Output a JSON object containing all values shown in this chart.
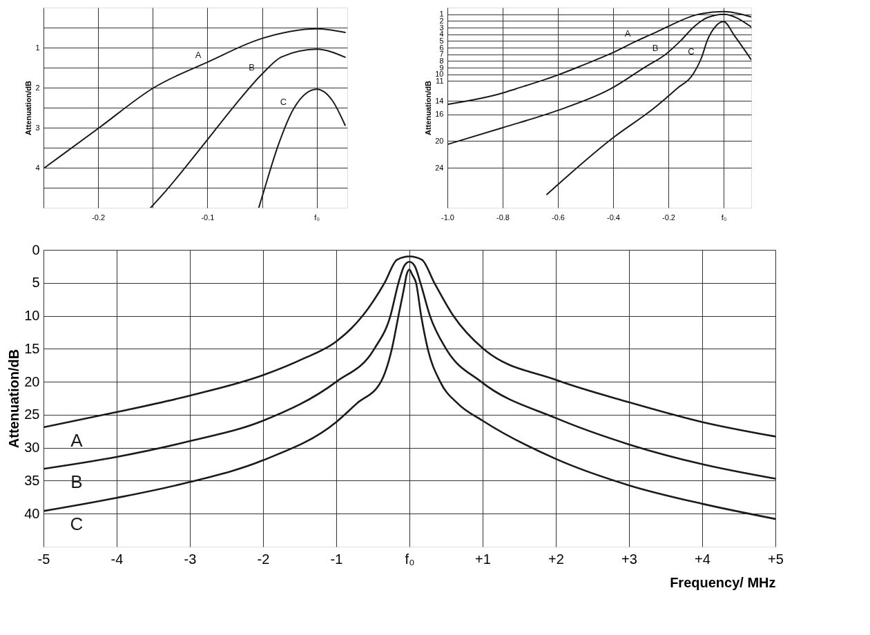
{
  "chart_data": [
    {
      "type": "line",
      "xlabel": "Frequency/ MHz",
      "ylabel": "Attenuation/dB",
      "xlim": [
        -5,
        5
      ],
      "ylim": [
        45,
        0
      ],
      "xticks": [
        -5,
        -4,
        -3,
        -2,
        -1,
        {
          "value": 0,
          "label": "f₀"
        },
        {
          "value": 1,
          "label": "+1"
        },
        {
          "value": 2,
          "label": "+2"
        },
        {
          "value": 3,
          "label": "+3"
        },
        {
          "value": 4,
          "label": "+4"
        },
        {
          "value": 5,
          "label": "+5"
        }
      ],
      "yticks": [
        0,
        5,
        10,
        15,
        20,
        25,
        30,
        35,
        40
      ],
      "grid": true,
      "series": [
        {
          "name": "A",
          "color": "#1a1a1a",
          "x": [
            -5,
            -4,
            -3,
            -2,
            -1.45,
            -1,
            -0.64,
            -0.34,
            -0.17,
            0,
            0.17,
            0.34,
            0.6,
            1.01,
            2,
            3,
            4,
            5
          ],
          "values": [
            26.9,
            24.6,
            22.1,
            19.0,
            16.5,
            13.9,
            10,
            5,
            1.5,
            1.0,
            1.5,
            5,
            10,
            15,
            19.7,
            23.1,
            26.1,
            28.3
          ]
        },
        {
          "name": "B",
          "color": "#1a1a1a",
          "x": [
            -5,
            -4,
            -3,
            -2,
            -1,
            -0.48,
            -0.26,
            -0.15,
            -0.07,
            0,
            0.07,
            0.15,
            0.28,
            0.5,
            0.98,
            2,
            3,
            4,
            5
          ],
          "values": [
            33.2,
            31.4,
            29.0,
            25.9,
            20.0,
            15,
            10,
            5,
            2.4,
            1.8,
            2.4,
            5,
            10,
            15,
            20,
            25.5,
            29.5,
            32.5,
            34.7
          ]
        },
        {
          "name": "C",
          "color": "#1a1a1a",
          "x": [
            -5,
            -4,
            -3,
            -2,
            -1,
            -0.72,
            -0.39,
            -0.24,
            -0.15,
            -0.06,
            -0.04,
            0,
            0.04,
            0.09,
            0.16,
            0.25,
            0.42,
            0.66,
            1,
            2,
            3,
            4,
            5
          ],
          "values": [
            39.6,
            37.6,
            35.2,
            31.9,
            26.1,
            23.3,
            20,
            15,
            10,
            5,
            3.8,
            3.0,
            3.8,
            5,
            10,
            15,
            20,
            23.3,
            25.9,
            31.7,
            35.7,
            38.5,
            40.8
          ]
        }
      ]
    },
    {
      "type": "line",
      "ylabel": "Attenuation/dB",
      "xlim": [
        -0.25,
        0.028
      ],
      "ylim": [
        5,
        0
      ],
      "xticks": [
        {
          "value": -0.25,
          "label": null
        },
        -0.2,
        {
          "value": -0.15,
          "label": null
        },
        -0.1,
        {
          "value": -0.05,
          "label": null
        },
        {
          "value": 0,
          "label": "f₀"
        }
      ],
      "yticks": [
        {
          "value": 0.5,
          "label": null
        },
        1,
        {
          "value": 1.5,
          "label": null
        },
        2,
        {
          "value": 2.5,
          "label": null
        },
        3,
        {
          "value": 3.5,
          "label": null
        },
        4,
        {
          "value": 4.5,
          "label": null
        }
      ],
      "grid": true,
      "series": [
        {
          "name": "A",
          "color": "#1a1a1a",
          "x": [
            -0.249,
            -0.199,
            -0.149,
            -0.099,
            -0.05,
            0,
            0.026
          ],
          "values": [
            4.0,
            3.0,
            2.0,
            1.35,
            0.77,
            0.53,
            0.62
          ]
        },
        {
          "name": "B",
          "color": "#1a1a1a",
          "x": [
            -0.152,
            -0.14,
            -0.1035,
            -0.074,
            -0.05,
            -0.032,
            0,
            0.026
          ],
          "values": [
            5.0,
            4.64,
            3.42,
            2.41,
            1.66,
            1.23,
            1.04,
            1.24
          ]
        },
        {
          "name": "C",
          "color": "#1a1a1a",
          "x": [
            -0.053,
            -0.049,
            -0.035,
            -0.021,
            0,
            0.014,
            0.026
          ],
          "values": [
            5.0,
            4.64,
            3.42,
            2.52,
            2.04,
            2.31,
            2.94
          ]
        }
      ]
    },
    {
      "type": "line",
      "ylabel": "Attenuation/dB",
      "xlim": [
        -1.0,
        0.1
      ],
      "ylim": [
        30,
        0
      ],
      "xticks": [
        {
          "value": -1,
          "label": "-1.0"
        },
        -0.8,
        -0.6,
        -0.4,
        -0.2,
        {
          "value": 0,
          "label": "f₀"
        }
      ],
      "yticks": [
        1,
        2,
        3,
        4,
        5,
        6,
        7,
        8,
        9,
        10,
        11,
        14,
        16,
        20,
        24
      ],
      "grid": true,
      "series": [
        {
          "name": "A",
          "color": "#1a1a1a",
          "x": [
            -1.0,
            -0.8,
            -0.754,
            -0.6,
            -0.508,
            -0.409,
            -0.31,
            -0.256,
            -0.2,
            -0.1,
            0,
            0.1
          ],
          "values": [
            14.5,
            12.8,
            12.2,
            10.1,
            8.6,
            6.9,
            4.9,
            3.9,
            2.8,
            1.1,
            0.6,
            1.4
          ]
        },
        {
          "name": "B",
          "color": "#1a1a1a",
          "x": [
            -1.0,
            -0.8,
            -0.6,
            -0.41,
            -0.284,
            -0.21,
            -0.154,
            -0.108,
            -0.059,
            0,
            0.1
          ],
          "values": [
            20.5,
            18.0,
            15.4,
            12.2,
            8.9,
            7.0,
            4.9,
            2.9,
            1.5,
            1.0,
            2.9
          ]
        },
        {
          "name": "C",
          "color": "#1a1a1a",
          "x": [
            -0.64,
            -0.4,
            -0.25,
            -0.171,
            -0.108,
            -0.08,
            -0.059,
            -0.031,
            0,
            0.039,
            0.1
          ],
          "values": [
            28,
            19.5,
            15,
            12.2,
            9.8,
            7.5,
            4.9,
            2.9,
            2.1,
            4.2,
            7.8
          ]
        }
      ]
    }
  ]
}
